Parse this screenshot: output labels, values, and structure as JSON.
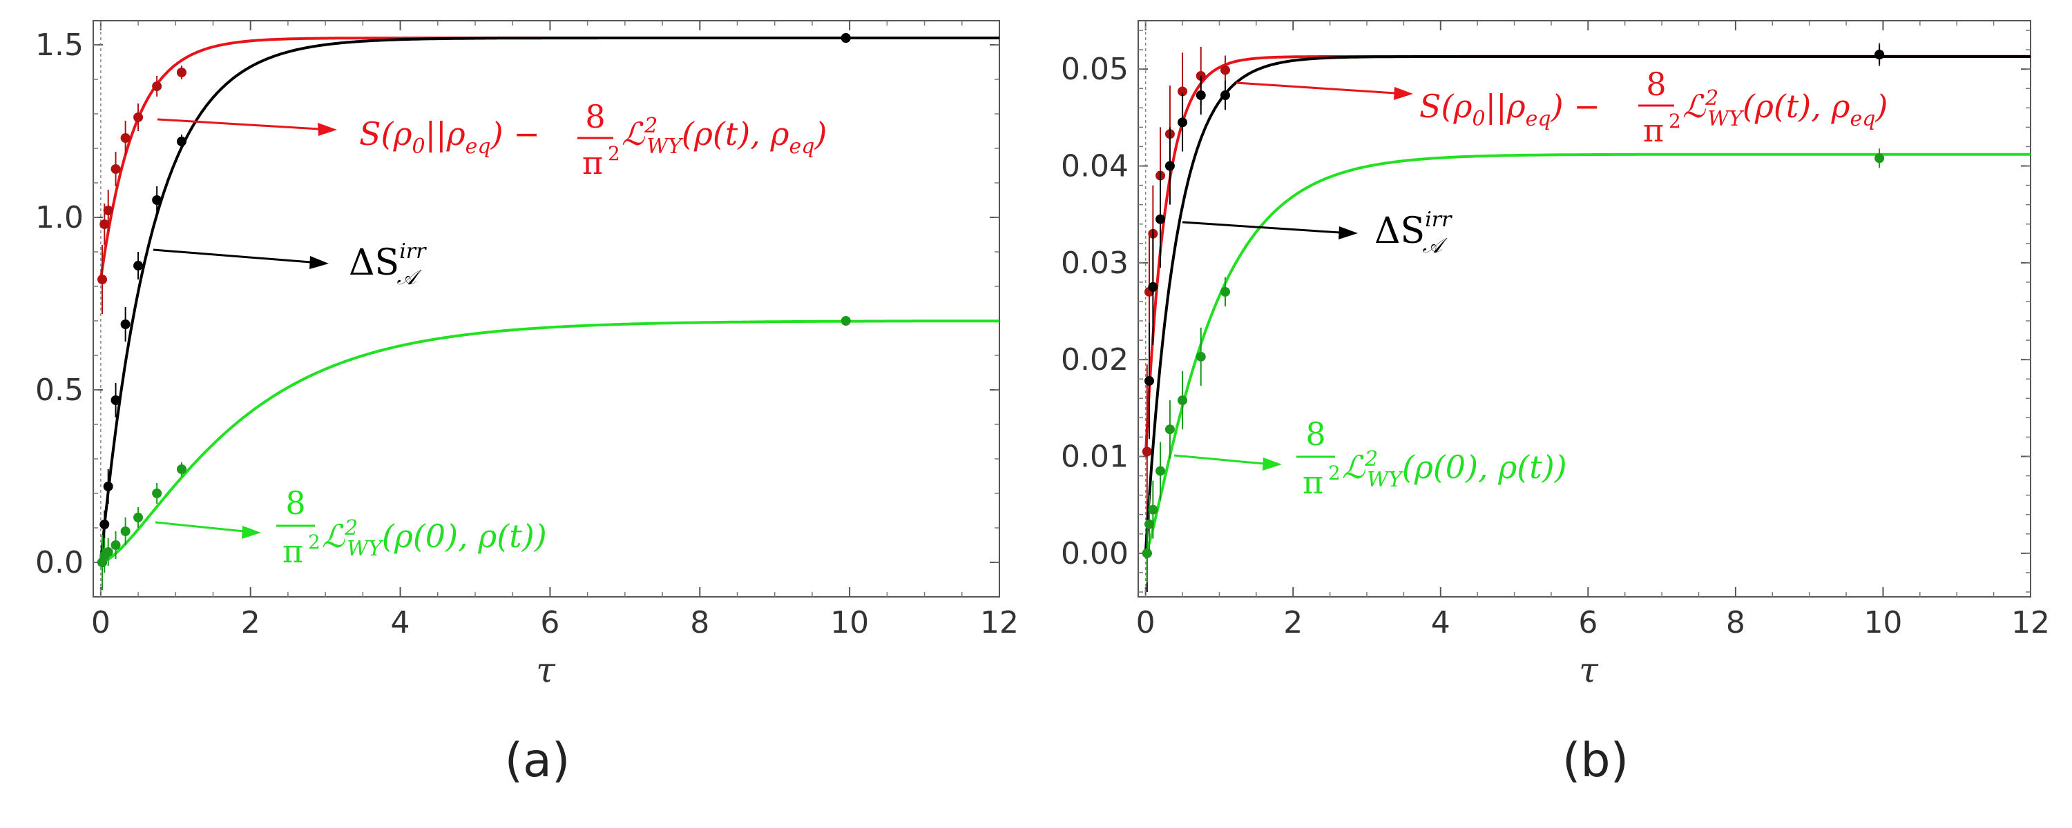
{
  "colors": {
    "red": "#e8141a",
    "red_dark": "#b01010",
    "black": "#000000",
    "green": "#22e022",
    "green_dark": "#1a9a1a"
  },
  "labels": {
    "panel_a": "(a)",
    "panel_b": "(b)",
    "tau": "τ",
    "red_term": "S(ρ₀||ρ_eq) − (8/π²) ℒ²_WY(ρ(t), ρ_eq)",
    "black_term": "ΔS^irr_𝒜",
    "green_term": "(8/π²) ℒ²_WY(ρ(0), ρ(t))",
    "red_main": "S(ρ",
    "red_main2": "||ρ",
    "red_main3": ") −",
    "red_tail": "ℒ",
    "red_tail2": "(ρ(t), ρ",
    "red_tail3": ")",
    "sub0": "0",
    "sub_eq": "eq",
    "sup2": "2",
    "sub_wy": "WY",
    "frac_num": "8",
    "frac_den": "π",
    "delta_s": "ΔS",
    "sup_irr": "irr",
    "sub_A": "𝒜",
    "green_tail": "ℒ",
    "green_tail2": "(ρ(0), ρ(t))"
  },
  "chart_data": [
    {
      "type": "line",
      "panel": "(a)",
      "xlabel": "τ",
      "ylabel": "",
      "xlim": [
        -0.1,
        12
      ],
      "ylim": [
        -0.1,
        1.57
      ],
      "xticks": [
        0,
        2,
        4,
        6,
        8,
        10,
        12
      ],
      "yticks": [
        0.0,
        0.5,
        1.0,
        1.5
      ],
      "ytick_labels": [
        "0.0",
        "0.5",
        "1.0",
        "1.5"
      ],
      "series": [
        {
          "color_key": "red",
          "curve": {
            "form": "sat",
            "start": 0.82,
            "end": 1.52,
            "rate": 2.2
          },
          "points": [
            {
              "x": 0.02,
              "y": 0.82,
              "err": 0.1
            },
            {
              "x": 0.05,
              "y": 0.98,
              "err": 0.06
            },
            {
              "x": 0.1,
              "y": 1.02,
              "err": 0.06
            },
            {
              "x": 0.2,
              "y": 1.14,
              "err": 0.05
            },
            {
              "x": 0.33,
              "y": 1.23,
              "err": 0.05
            },
            {
              "x": 0.5,
              "y": 1.29,
              "err": 0.04
            },
            {
              "x": 0.75,
              "y": 1.38,
              "err": 0.03
            },
            {
              "x": 1.08,
              "y": 1.42,
              "err": 0.02
            },
            {
              "x": 9.95,
              "y": 1.52,
              "err": 0.01
            }
          ]
        },
        {
          "color_key": "black",
          "curve": {
            "form": "sat",
            "start": 0.0,
            "end": 1.52,
            "rate": 1.45
          },
          "points": [
            {
              "x": 0.02,
              "y": 0.0,
              "err": 0.03
            },
            {
              "x": 0.05,
              "y": 0.11,
              "err": 0.04
            },
            {
              "x": 0.1,
              "y": 0.22,
              "err": 0.05
            },
            {
              "x": 0.2,
              "y": 0.47,
              "err": 0.05
            },
            {
              "x": 0.33,
              "y": 0.69,
              "err": 0.05
            },
            {
              "x": 0.5,
              "y": 0.86,
              "err": 0.04
            },
            {
              "x": 0.75,
              "y": 1.05,
              "err": 0.04
            },
            {
              "x": 1.08,
              "y": 1.22,
              "err": 0.02
            },
            {
              "x": 9.95,
              "y": 1.52,
              "err": 0.01
            }
          ]
        },
        {
          "color_key": "green",
          "curve": {
            "form": "sigmoid",
            "start": 0.0,
            "end": 0.7,
            "rate": 0.68,
            "power": 1.6
          },
          "points": [
            {
              "x": 0.02,
              "y": 0.0,
              "err": 0.08
            },
            {
              "x": 0.05,
              "y": 0.02,
              "err": 0.05
            },
            {
              "x": 0.1,
              "y": 0.03,
              "err": 0.04
            },
            {
              "x": 0.2,
              "y": 0.05,
              "err": 0.04
            },
            {
              "x": 0.33,
              "y": 0.09,
              "err": 0.04
            },
            {
              "x": 0.5,
              "y": 0.13,
              "err": 0.03
            },
            {
              "x": 0.75,
              "y": 0.2,
              "err": 0.03
            },
            {
              "x": 1.08,
              "y": 0.27,
              "err": 0.02
            },
            {
              "x": 9.95,
              "y": 0.7,
              "err": 0.01
            }
          ]
        }
      ]
    },
    {
      "type": "line",
      "panel": "(b)",
      "xlabel": "τ",
      "ylabel": "",
      "xlim": [
        -0.1,
        12
      ],
      "ylim": [
        -0.0045,
        0.055
      ],
      "xticks": [
        0,
        2,
        4,
        6,
        8,
        10,
        12
      ],
      "yticks": [
        0.0,
        0.01,
        0.02,
        0.03,
        0.04,
        0.05
      ],
      "ytick_labels": [
        "0.00",
        "0.01",
        "0.02",
        "0.03",
        "0.04",
        "0.05"
      ],
      "series": [
        {
          "color_key": "red",
          "curve": {
            "form": "sat",
            "start": 0.01,
            "end": 0.0513,
            "rate": 3.6
          },
          "points": [
            {
              "x": 0.02,
              "y": 0.0105,
              "err": 0.009
            },
            {
              "x": 0.05,
              "y": 0.027,
              "err": 0.006
            },
            {
              "x": 0.1,
              "y": 0.033,
              "err": 0.005
            },
            {
              "x": 0.2,
              "y": 0.039,
              "err": 0.005
            },
            {
              "x": 0.33,
              "y": 0.0433,
              "err": 0.005
            },
            {
              "x": 0.5,
              "y": 0.0477,
              "err": 0.004
            },
            {
              "x": 0.75,
              "y": 0.0493,
              "err": 0.003
            },
            {
              "x": 1.08,
              "y": 0.0499,
              "err": 0.0015
            },
            {
              "x": 9.95,
              "y": 0.0515,
              "err": 0.0012
            }
          ]
        },
        {
          "color_key": "black",
          "curve": {
            "form": "sat",
            "start": 0.0,
            "end": 0.0513,
            "rate": 2.4
          },
          "points": [
            {
              "x": 0.02,
              "y": 0.0,
              "err": 0.004
            },
            {
              "x": 0.05,
              "y": 0.0178,
              "err": 0.006
            },
            {
              "x": 0.1,
              "y": 0.0275,
              "err": 0.006
            },
            {
              "x": 0.2,
              "y": 0.0345,
              "err": 0.005
            },
            {
              "x": 0.33,
              "y": 0.04,
              "err": 0.004
            },
            {
              "x": 0.5,
              "y": 0.0445,
              "err": 0.003
            },
            {
              "x": 0.75,
              "y": 0.0473,
              "err": 0.002
            },
            {
              "x": 1.08,
              "y": 0.0473,
              "err": 0.0015
            },
            {
              "x": 9.95,
              "y": 0.0515,
              "err": 0.001
            }
          ]
        },
        {
          "color_key": "green",
          "curve": {
            "form": "sigmoid",
            "start": 0.0,
            "end": 0.0412,
            "rate": 1.25,
            "power": 1.3
          },
          "points": [
            {
              "x": 0.02,
              "y": 0.0,
              "err": 0.003
            },
            {
              "x": 0.05,
              "y": 0.003,
              "err": 0.003
            },
            {
              "x": 0.1,
              "y": 0.0045,
              "err": 0.003
            },
            {
              "x": 0.2,
              "y": 0.0085,
              "err": 0.003
            },
            {
              "x": 0.33,
              "y": 0.0128,
              "err": 0.003
            },
            {
              "x": 0.5,
              "y": 0.0158,
              "err": 0.003
            },
            {
              "x": 0.75,
              "y": 0.0203,
              "err": 0.003
            },
            {
              "x": 1.08,
              "y": 0.027,
              "err": 0.0015
            },
            {
              "x": 9.95,
              "y": 0.0408,
              "err": 0.001
            }
          ]
        }
      ]
    }
  ]
}
